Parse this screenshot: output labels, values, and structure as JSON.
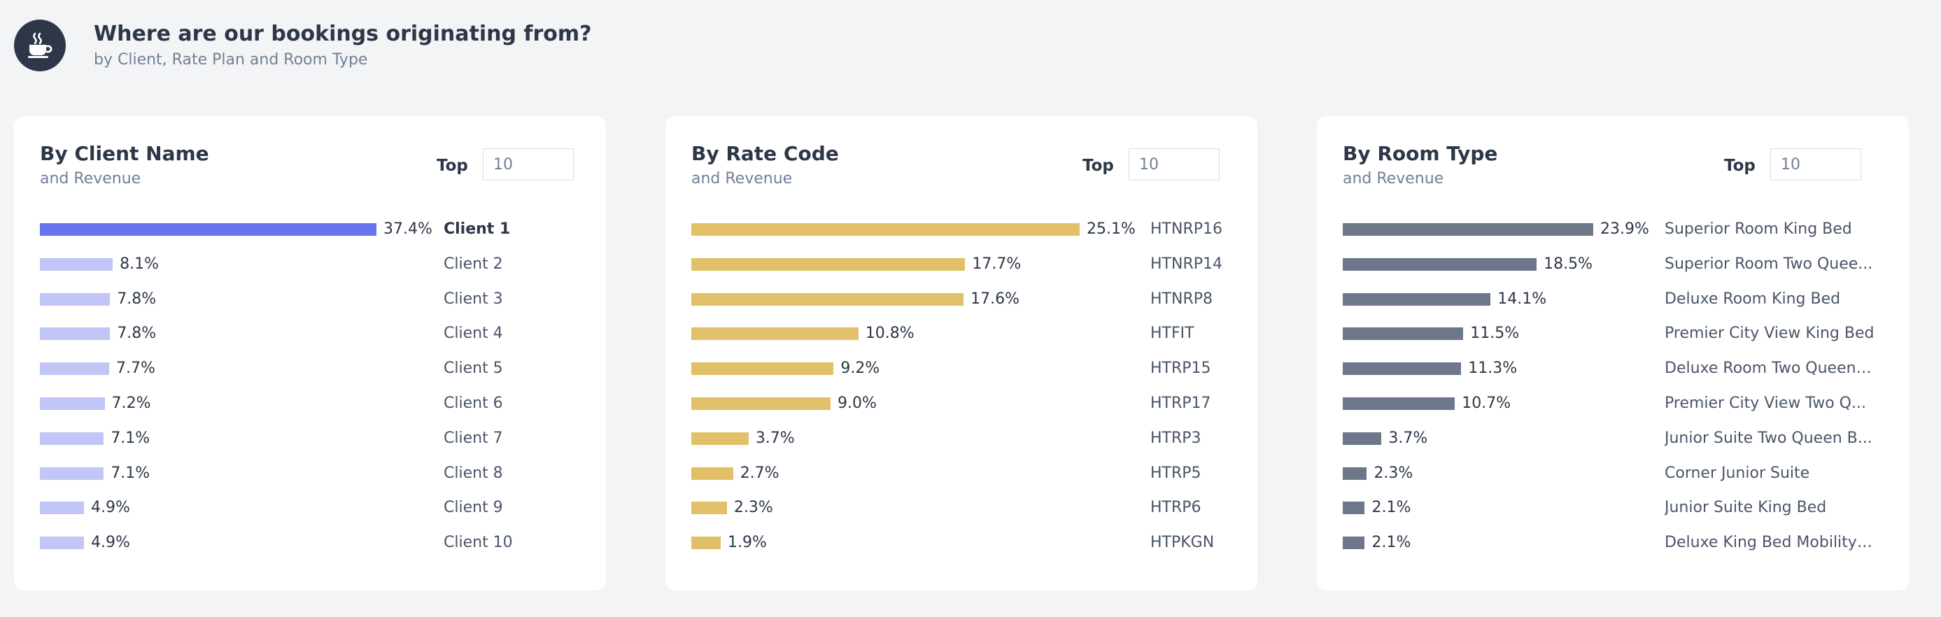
{
  "header": {
    "icon": "coffee-cup-icon",
    "title": "Where are our bookings originating from?",
    "subtitle": "by Client, Rate Plan and Room Type"
  },
  "colors": {
    "client_selected": "#6674ef",
    "client": "#c1c6f6",
    "rate": "#e2c06a",
    "room": "#6c788a"
  },
  "cards": [
    {
      "id": "client",
      "title": "By Client Name",
      "subtitle": "and Revenue",
      "top_label": "Top",
      "top_value": "10"
    },
    {
      "id": "rate",
      "title": "By Rate Code",
      "subtitle": "and Revenue",
      "top_label": "Top",
      "top_value": "10"
    },
    {
      "id": "room",
      "title": "By Room Type",
      "subtitle": "and Revenue",
      "top_label": "Top",
      "top_value": "10"
    }
  ],
  "chart_data": [
    {
      "type": "bar",
      "orientation": "horizontal",
      "title": "By Client Name",
      "subtitle": "and Revenue",
      "selected_category": "Client 1",
      "categories": [
        "Client 1",
        "Client 2",
        "Client 3",
        "Client 4",
        "Client 5",
        "Client 6",
        "Client 7",
        "Client 8",
        "Client 9",
        "Client 10"
      ],
      "values": [
        37.4,
        8.1,
        7.8,
        7.8,
        7.7,
        7.2,
        7.1,
        7.1,
        4.9,
        4.9
      ],
      "value_labels": [
        "37.4%",
        "8.1%",
        "7.8%",
        "7.8%",
        "7.7%",
        "7.2%",
        "7.1%",
        "7.1%",
        "4.9%",
        "4.9%"
      ]
    },
    {
      "type": "bar",
      "orientation": "horizontal",
      "title": "By Rate Code",
      "subtitle": "and Revenue",
      "categories": [
        "HTNRP16",
        "HTNRP14",
        "HTNRP8",
        "HTFIT",
        "HTRP15",
        "HTRP17",
        "HTRP3",
        "HTRP5",
        "HTRP6",
        "HTPKGN"
      ],
      "values": [
        25.1,
        17.7,
        17.6,
        10.8,
        9.2,
        9.0,
        3.7,
        2.7,
        2.3,
        1.9
      ],
      "value_labels": [
        "25.1%",
        "17.7%",
        "17.6%",
        "10.8%",
        "9.2%",
        "9.0%",
        "3.7%",
        "2.7%",
        "2.3%",
        "1.9%"
      ]
    },
    {
      "type": "bar",
      "orientation": "horizontal",
      "title": "By Room Type",
      "subtitle": "and Revenue",
      "categories": [
        "Superior Room King Bed",
        "Superior Room Two Queen Beds",
        "Deluxe Room King Bed",
        "Premier City View King Bed",
        "Deluxe Room Two Queen Beds",
        "Premier City View Two Queen Beds",
        "Junior Suite Two Queen Beds",
        "Corner Junior Suite",
        "Junior Suite King Bed",
        "Deluxe King Bed Mobility Accessible"
      ],
      "display_labels": [
        "Superior Room King Bed",
        "Superior Room Two Quee...",
        "Deluxe Room King Bed",
        "Premier City View King Bed",
        "Deluxe Room Two Queen ...",
        "Premier City View Two Q...",
        "Junior Suite Two Queen B...",
        "Corner Junior Suite",
        "Junior Suite King Bed",
        "Deluxe King Bed Mobility ..."
      ],
      "values": [
        23.9,
        18.5,
        14.1,
        11.5,
        11.3,
        10.7,
        3.7,
        2.3,
        2.1,
        2.1
      ],
      "value_labels": [
        "23.9%",
        "18.5%",
        "14.1%",
        "11.5%",
        "11.3%",
        "10.7%",
        "3.7%",
        "2.3%",
        "2.1%",
        "2.1%"
      ]
    }
  ]
}
